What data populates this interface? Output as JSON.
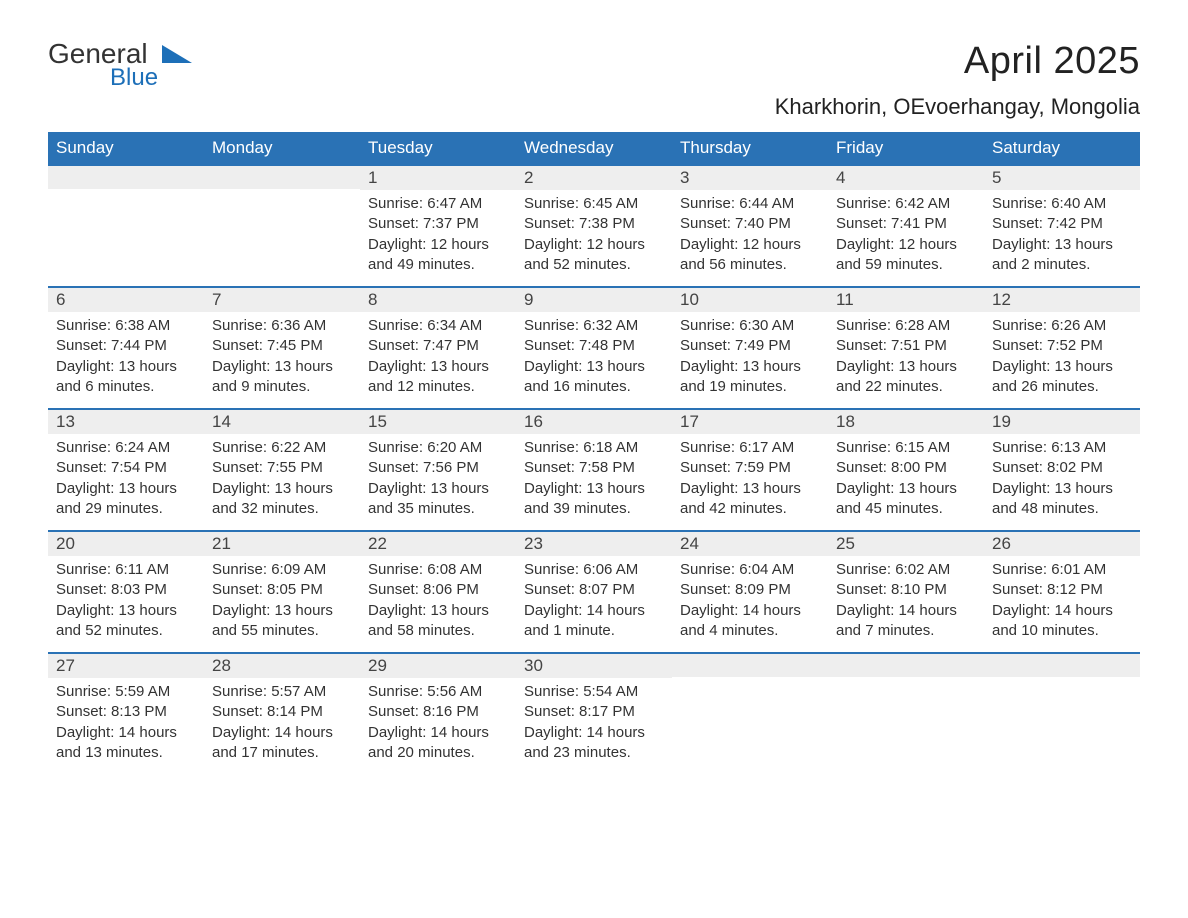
{
  "logo": {
    "word1": "General",
    "word2": "Blue"
  },
  "title": "April 2025",
  "subtitle": "Kharkhorin, OEvoerhangay, Mongolia",
  "colors": {
    "header_bg": "#2a72b5",
    "header_text": "#ffffff",
    "week_border": "#2a72b5",
    "daynum_bg": "#eeeeee",
    "body_bg": "#ffffff",
    "text": "#333333",
    "logo_blue": "#1d6fb8"
  },
  "day_labels": [
    "Sunday",
    "Monday",
    "Tuesday",
    "Wednesday",
    "Thursday",
    "Friday",
    "Saturday"
  ],
  "weeks": [
    [
      {
        "num": "",
        "sunrise": "",
        "sunset": "",
        "daylight": ""
      },
      {
        "num": "",
        "sunrise": "",
        "sunset": "",
        "daylight": ""
      },
      {
        "num": "1",
        "sunrise": "Sunrise: 6:47 AM",
        "sunset": "Sunset: 7:37 PM",
        "daylight": "Daylight: 12 hours and 49 minutes."
      },
      {
        "num": "2",
        "sunrise": "Sunrise: 6:45 AM",
        "sunset": "Sunset: 7:38 PM",
        "daylight": "Daylight: 12 hours and 52 minutes."
      },
      {
        "num": "3",
        "sunrise": "Sunrise: 6:44 AM",
        "sunset": "Sunset: 7:40 PM",
        "daylight": "Daylight: 12 hours and 56 minutes."
      },
      {
        "num": "4",
        "sunrise": "Sunrise: 6:42 AM",
        "sunset": "Sunset: 7:41 PM",
        "daylight": "Daylight: 12 hours and 59 minutes."
      },
      {
        "num": "5",
        "sunrise": "Sunrise: 6:40 AM",
        "sunset": "Sunset: 7:42 PM",
        "daylight": "Daylight: 13 hours and 2 minutes."
      }
    ],
    [
      {
        "num": "6",
        "sunrise": "Sunrise: 6:38 AM",
        "sunset": "Sunset: 7:44 PM",
        "daylight": "Daylight: 13 hours and 6 minutes."
      },
      {
        "num": "7",
        "sunrise": "Sunrise: 6:36 AM",
        "sunset": "Sunset: 7:45 PM",
        "daylight": "Daylight: 13 hours and 9 minutes."
      },
      {
        "num": "8",
        "sunrise": "Sunrise: 6:34 AM",
        "sunset": "Sunset: 7:47 PM",
        "daylight": "Daylight: 13 hours and 12 minutes."
      },
      {
        "num": "9",
        "sunrise": "Sunrise: 6:32 AM",
        "sunset": "Sunset: 7:48 PM",
        "daylight": "Daylight: 13 hours and 16 minutes."
      },
      {
        "num": "10",
        "sunrise": "Sunrise: 6:30 AM",
        "sunset": "Sunset: 7:49 PM",
        "daylight": "Daylight: 13 hours and 19 minutes."
      },
      {
        "num": "11",
        "sunrise": "Sunrise: 6:28 AM",
        "sunset": "Sunset: 7:51 PM",
        "daylight": "Daylight: 13 hours and 22 minutes."
      },
      {
        "num": "12",
        "sunrise": "Sunrise: 6:26 AM",
        "sunset": "Sunset: 7:52 PM",
        "daylight": "Daylight: 13 hours and 26 minutes."
      }
    ],
    [
      {
        "num": "13",
        "sunrise": "Sunrise: 6:24 AM",
        "sunset": "Sunset: 7:54 PM",
        "daylight": "Daylight: 13 hours and 29 minutes."
      },
      {
        "num": "14",
        "sunrise": "Sunrise: 6:22 AM",
        "sunset": "Sunset: 7:55 PM",
        "daylight": "Daylight: 13 hours and 32 minutes."
      },
      {
        "num": "15",
        "sunrise": "Sunrise: 6:20 AM",
        "sunset": "Sunset: 7:56 PM",
        "daylight": "Daylight: 13 hours and 35 minutes."
      },
      {
        "num": "16",
        "sunrise": "Sunrise: 6:18 AM",
        "sunset": "Sunset: 7:58 PM",
        "daylight": "Daylight: 13 hours and 39 minutes."
      },
      {
        "num": "17",
        "sunrise": "Sunrise: 6:17 AM",
        "sunset": "Sunset: 7:59 PM",
        "daylight": "Daylight: 13 hours and 42 minutes."
      },
      {
        "num": "18",
        "sunrise": "Sunrise: 6:15 AM",
        "sunset": "Sunset: 8:00 PM",
        "daylight": "Daylight: 13 hours and 45 minutes."
      },
      {
        "num": "19",
        "sunrise": "Sunrise: 6:13 AM",
        "sunset": "Sunset: 8:02 PM",
        "daylight": "Daylight: 13 hours and 48 minutes."
      }
    ],
    [
      {
        "num": "20",
        "sunrise": "Sunrise: 6:11 AM",
        "sunset": "Sunset: 8:03 PM",
        "daylight": "Daylight: 13 hours and 52 minutes."
      },
      {
        "num": "21",
        "sunrise": "Sunrise: 6:09 AM",
        "sunset": "Sunset: 8:05 PM",
        "daylight": "Daylight: 13 hours and 55 minutes."
      },
      {
        "num": "22",
        "sunrise": "Sunrise: 6:08 AM",
        "sunset": "Sunset: 8:06 PM",
        "daylight": "Daylight: 13 hours and 58 minutes."
      },
      {
        "num": "23",
        "sunrise": "Sunrise: 6:06 AM",
        "sunset": "Sunset: 8:07 PM",
        "daylight": "Daylight: 14 hours and 1 minute."
      },
      {
        "num": "24",
        "sunrise": "Sunrise: 6:04 AM",
        "sunset": "Sunset: 8:09 PM",
        "daylight": "Daylight: 14 hours and 4 minutes."
      },
      {
        "num": "25",
        "sunrise": "Sunrise: 6:02 AM",
        "sunset": "Sunset: 8:10 PM",
        "daylight": "Daylight: 14 hours and 7 minutes."
      },
      {
        "num": "26",
        "sunrise": "Sunrise: 6:01 AM",
        "sunset": "Sunset: 8:12 PM",
        "daylight": "Daylight: 14 hours and 10 minutes."
      }
    ],
    [
      {
        "num": "27",
        "sunrise": "Sunrise: 5:59 AM",
        "sunset": "Sunset: 8:13 PM",
        "daylight": "Daylight: 14 hours and 13 minutes."
      },
      {
        "num": "28",
        "sunrise": "Sunrise: 5:57 AM",
        "sunset": "Sunset: 8:14 PM",
        "daylight": "Daylight: 14 hours and 17 minutes."
      },
      {
        "num": "29",
        "sunrise": "Sunrise: 5:56 AM",
        "sunset": "Sunset: 8:16 PM",
        "daylight": "Daylight: 14 hours and 20 minutes."
      },
      {
        "num": "30",
        "sunrise": "Sunrise: 5:54 AM",
        "sunset": "Sunset: 8:17 PM",
        "daylight": "Daylight: 14 hours and 23 minutes."
      },
      {
        "num": "",
        "sunrise": "",
        "sunset": "",
        "daylight": ""
      },
      {
        "num": "",
        "sunrise": "",
        "sunset": "",
        "daylight": ""
      },
      {
        "num": "",
        "sunrise": "",
        "sunset": "",
        "daylight": ""
      }
    ]
  ]
}
